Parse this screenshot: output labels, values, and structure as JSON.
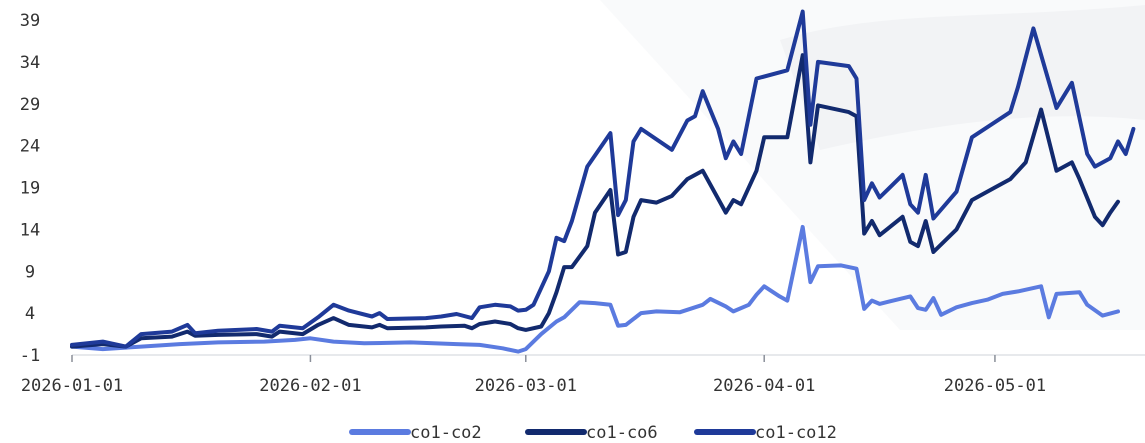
{
  "chart_data": {
    "type": "line",
    "title": "",
    "xlabel": "",
    "ylabel": "",
    "ylim": [
      -1,
      39
    ],
    "xlim": [
      "2026-01-01",
      "2026-05-17"
    ],
    "y_ticks": [
      -1,
      4,
      9,
      14,
      19,
      24,
      29,
      34,
      39
    ],
    "x_ticks": [
      "2026-01-01",
      "2026-02-01",
      "2026-03-01",
      "2026-04-01",
      "2026-05-01"
    ],
    "grid": false,
    "legend_position": "bottom",
    "series": [
      {
        "name": "co1-co2",
        "color": "#5b7be0",
        "points": [
          [
            "2026-01-01",
            0.0
          ],
          [
            "2026-01-05",
            -0.3
          ],
          [
            "2026-01-10",
            0.0
          ],
          [
            "2026-01-15",
            0.3
          ],
          [
            "2026-01-20",
            0.5
          ],
          [
            "2026-01-26",
            0.6
          ],
          [
            "2026-01-30",
            0.8
          ],
          [
            "2026-02-01",
            1.0
          ],
          [
            "2026-02-04",
            0.6
          ],
          [
            "2026-02-08",
            0.4
          ],
          [
            "2026-02-14",
            0.5
          ],
          [
            "2026-02-20",
            0.3
          ],
          [
            "2026-02-23",
            0.2
          ],
          [
            "2026-02-26",
            -0.2
          ],
          [
            "2026-02-28",
            -0.6
          ],
          [
            "2026-03-01",
            -0.3
          ],
          [
            "2026-03-03",
            1.5
          ],
          [
            "2026-03-05",
            3.0
          ],
          [
            "2026-03-06",
            3.5
          ],
          [
            "2026-03-08",
            5.3
          ],
          [
            "2026-03-10",
            5.2
          ],
          [
            "2026-03-12",
            5.0
          ],
          [
            "2026-03-13",
            2.5
          ],
          [
            "2026-03-14",
            2.6
          ],
          [
            "2026-03-16",
            4.0
          ],
          [
            "2026-03-18",
            4.2
          ],
          [
            "2026-03-21",
            4.1
          ],
          [
            "2026-03-24",
            5.0
          ],
          [
            "2026-03-25",
            5.7
          ],
          [
            "2026-03-27",
            4.8
          ],
          [
            "2026-03-28",
            4.2
          ],
          [
            "2026-03-30",
            5.0
          ],
          [
            "2026-03-31",
            6.2
          ],
          [
            "2026-04-01",
            7.2
          ],
          [
            "2026-04-03",
            6.0
          ],
          [
            "2026-04-04",
            5.5
          ],
          [
            "2026-04-06",
            14.3
          ],
          [
            "2026-04-07",
            7.7
          ],
          [
            "2026-04-08",
            9.6
          ],
          [
            "2026-04-11",
            9.7
          ],
          [
            "2026-04-13",
            9.3
          ],
          [
            "2026-04-14",
            4.5
          ],
          [
            "2026-04-15",
            5.5
          ],
          [
            "2026-04-16",
            5.1
          ],
          [
            "2026-04-20",
            6.0
          ],
          [
            "2026-04-21",
            4.6
          ],
          [
            "2026-04-22",
            4.4
          ],
          [
            "2026-04-23",
            5.8
          ],
          [
            "2026-04-24",
            3.8
          ],
          [
            "2026-04-26",
            4.7
          ],
          [
            "2026-04-28",
            5.2
          ],
          [
            "2026-04-30",
            5.6
          ],
          [
            "2026-05-02",
            6.3
          ],
          [
            "2026-05-04",
            6.6
          ],
          [
            "2026-05-07",
            7.2
          ],
          [
            "2026-05-08",
            3.5
          ],
          [
            "2026-05-09",
            6.3
          ],
          [
            "2026-05-12",
            6.5
          ],
          [
            "2026-05-13",
            5.0
          ],
          [
            "2026-05-15",
            3.7
          ],
          [
            "2026-05-17",
            4.2
          ]
        ]
      },
      {
        "name": "co1-co6",
        "color": "#122a6e",
        "points": [
          [
            "2026-01-01",
            0.0
          ],
          [
            "2026-01-05",
            0.3
          ],
          [
            "2026-01-08",
            0.0
          ],
          [
            "2026-01-10",
            1.0
          ],
          [
            "2026-01-14",
            1.2
          ],
          [
            "2026-01-16",
            1.8
          ],
          [
            "2026-01-17",
            1.3
          ],
          [
            "2026-01-20",
            1.4
          ],
          [
            "2026-01-25",
            1.5
          ],
          [
            "2026-01-27",
            1.2
          ],
          [
            "2026-01-28",
            1.8
          ],
          [
            "2026-01-31",
            1.5
          ],
          [
            "2026-02-02",
            2.6
          ],
          [
            "2026-02-04",
            3.4
          ],
          [
            "2026-02-06",
            2.6
          ],
          [
            "2026-02-09",
            2.3
          ],
          [
            "2026-02-10",
            2.6
          ],
          [
            "2026-02-11",
            2.2
          ],
          [
            "2026-02-16",
            2.3
          ],
          [
            "2026-02-18",
            2.4
          ],
          [
            "2026-02-21",
            2.5
          ],
          [
            "2026-02-22",
            2.2
          ],
          [
            "2026-02-23",
            2.7
          ],
          [
            "2026-02-25",
            3.0
          ],
          [
            "2026-02-27",
            2.7
          ],
          [
            "2026-02-28",
            2.2
          ],
          [
            "2026-03-01",
            2.0
          ],
          [
            "2026-03-03",
            2.4
          ],
          [
            "2026-03-04",
            4.0
          ],
          [
            "2026-03-05",
            6.5
          ],
          [
            "2026-03-06",
            9.5
          ],
          [
            "2026-03-07",
            9.5
          ],
          [
            "2026-03-09",
            12.0
          ],
          [
            "2026-03-10",
            16.0
          ],
          [
            "2026-03-12",
            18.7
          ],
          [
            "2026-03-13",
            11.0
          ],
          [
            "2026-03-14",
            11.3
          ],
          [
            "2026-03-15",
            15.5
          ],
          [
            "2026-03-16",
            17.5
          ],
          [
            "2026-03-18",
            17.2
          ],
          [
            "2026-03-20",
            18.0
          ],
          [
            "2026-03-22",
            20.0
          ],
          [
            "2026-03-24",
            21.0
          ],
          [
            "2026-03-27",
            16.0
          ],
          [
            "2026-03-28",
            17.5
          ],
          [
            "2026-03-29",
            17.0
          ],
          [
            "2026-03-31",
            21.0
          ],
          [
            "2026-04-01",
            25.0
          ],
          [
            "2026-04-04",
            25.0
          ],
          [
            "2026-04-06",
            34.8
          ],
          [
            "2026-04-07",
            22.0
          ],
          [
            "2026-04-08",
            28.8
          ],
          [
            "2026-04-12",
            28.0
          ],
          [
            "2026-04-13",
            27.5
          ],
          [
            "2026-04-14",
            13.5
          ],
          [
            "2026-04-15",
            15.0
          ],
          [
            "2026-04-16",
            13.3
          ],
          [
            "2026-04-19",
            15.5
          ],
          [
            "2026-04-20",
            12.5
          ],
          [
            "2026-04-21",
            12.0
          ],
          [
            "2026-04-22",
            15.0
          ],
          [
            "2026-04-23",
            11.3
          ],
          [
            "2026-04-26",
            14.0
          ],
          [
            "2026-04-28",
            17.5
          ],
          [
            "2026-05-01",
            19.0
          ],
          [
            "2026-05-03",
            20.0
          ],
          [
            "2026-05-05",
            22.0
          ],
          [
            "2026-05-07",
            28.3
          ],
          [
            "2026-05-09",
            21.0
          ],
          [
            "2026-05-11",
            22.0
          ],
          [
            "2026-05-12",
            20.0
          ],
          [
            "2026-05-14",
            15.5
          ],
          [
            "2026-05-15",
            14.5
          ],
          [
            "2026-05-16",
            16.0
          ],
          [
            "2026-05-17",
            17.3
          ]
        ]
      },
      {
        "name": "co1-co12",
        "color": "#1f3a99",
        "points": [
          [
            "2026-01-01",
            0.2
          ],
          [
            "2026-01-05",
            0.6
          ],
          [
            "2026-01-08",
            0.0
          ],
          [
            "2026-01-10",
            1.5
          ],
          [
            "2026-01-14",
            1.8
          ],
          [
            "2026-01-16",
            2.6
          ],
          [
            "2026-01-17",
            1.6
          ],
          [
            "2026-01-20",
            1.9
          ],
          [
            "2026-01-25",
            2.1
          ],
          [
            "2026-01-27",
            1.8
          ],
          [
            "2026-01-28",
            2.5
          ],
          [
            "2026-01-31",
            2.2
          ],
          [
            "2026-02-02",
            3.5
          ],
          [
            "2026-02-04",
            5.0
          ],
          [
            "2026-02-06",
            4.3
          ],
          [
            "2026-02-09",
            3.6
          ],
          [
            "2026-02-10",
            4.0
          ],
          [
            "2026-02-11",
            3.3
          ],
          [
            "2026-02-16",
            3.4
          ],
          [
            "2026-02-18",
            3.6
          ],
          [
            "2026-02-20",
            3.9
          ],
          [
            "2026-02-22",
            3.4
          ],
          [
            "2026-02-23",
            4.7
          ],
          [
            "2026-02-25",
            5.0
          ],
          [
            "2026-02-27",
            4.8
          ],
          [
            "2026-02-28",
            4.3
          ],
          [
            "2026-03-01",
            4.4
          ],
          [
            "2026-03-02",
            5.0
          ],
          [
            "2026-03-04",
            9.0
          ],
          [
            "2026-03-05",
            13.0
          ],
          [
            "2026-03-06",
            12.6
          ],
          [
            "2026-03-07",
            15.0
          ],
          [
            "2026-03-09",
            21.5
          ],
          [
            "2026-03-12",
            25.5
          ],
          [
            "2026-03-13",
            15.7
          ],
          [
            "2026-03-14",
            17.5
          ],
          [
            "2026-03-15",
            24.5
          ],
          [
            "2026-03-16",
            26.0
          ],
          [
            "2026-03-20",
            23.5
          ],
          [
            "2026-03-22",
            27.0
          ],
          [
            "2026-03-23",
            27.5
          ],
          [
            "2026-03-24",
            30.5
          ],
          [
            "2026-03-26",
            26.0
          ],
          [
            "2026-03-27",
            22.5
          ],
          [
            "2026-03-28",
            24.5
          ],
          [
            "2026-03-29",
            23.0
          ],
          [
            "2026-03-31",
            32.0
          ],
          [
            "2026-04-04",
            33.0
          ],
          [
            "2026-04-06",
            40.0
          ],
          [
            "2026-04-07",
            26.5
          ],
          [
            "2026-04-08",
            34.0
          ],
          [
            "2026-04-12",
            33.5
          ],
          [
            "2026-04-13",
            32.0
          ],
          [
            "2026-04-14",
            17.5
          ],
          [
            "2026-04-15",
            19.5
          ],
          [
            "2026-04-16",
            17.8
          ],
          [
            "2026-04-19",
            20.5
          ],
          [
            "2026-04-20",
            17.0
          ],
          [
            "2026-04-21",
            16.0
          ],
          [
            "2026-04-22",
            20.5
          ],
          [
            "2026-04-23",
            15.3
          ],
          [
            "2026-04-26",
            18.5
          ],
          [
            "2026-04-28",
            25.0
          ],
          [
            "2026-05-03",
            28.0
          ],
          [
            "2026-05-04",
            31.0
          ],
          [
            "2026-05-06",
            38.0
          ],
          [
            "2026-05-09",
            28.5
          ],
          [
            "2026-05-11",
            31.5
          ],
          [
            "2026-05-13",
            23.0
          ],
          [
            "2026-05-14",
            21.5
          ],
          [
            "2026-05-16",
            22.5
          ],
          [
            "2026-05-17",
            24.5
          ],
          [
            "2026-05-18",
            23.0
          ],
          [
            "2026-05-19",
            26.0
          ]
        ]
      }
    ]
  }
}
